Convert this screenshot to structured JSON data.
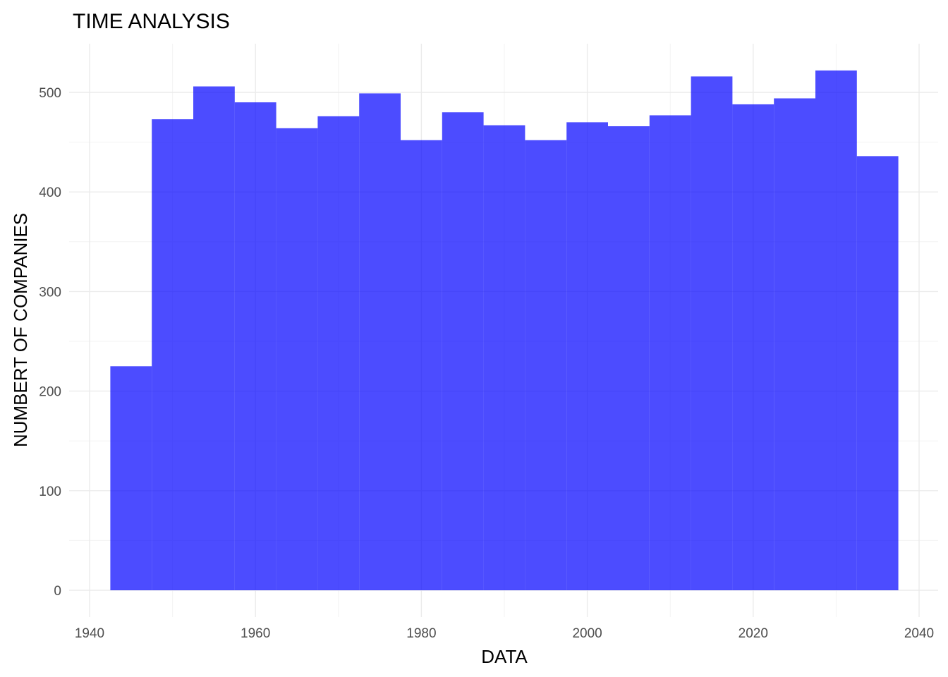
{
  "chart_data": {
    "type": "bar",
    "subtype": "histogram",
    "title": "TIME ANALYSIS",
    "xlabel": "DATA",
    "ylabel": "NUMBERT OF COMPANIES",
    "xlim": [
      1940,
      2040
    ],
    "ylim": [
      0,
      550
    ],
    "x_ticks": [
      1940,
      1960,
      1980,
      2000,
      2020,
      2040
    ],
    "y_ticks": [
      0,
      100,
      200,
      300,
      400,
      500
    ],
    "grid": true,
    "legend": "none",
    "bar_color": "#0000ff",
    "bar_opacity": 0.7,
    "bin_width": 5,
    "bins": [
      {
        "start": 1942.5,
        "end": 1947.5,
        "count": 225
      },
      {
        "start": 1947.5,
        "end": 1952.5,
        "count": 473
      },
      {
        "start": 1952.5,
        "end": 1957.5,
        "count": 506
      },
      {
        "start": 1957.5,
        "end": 1962.5,
        "count": 490
      },
      {
        "start": 1962.5,
        "end": 1967.5,
        "count": 464
      },
      {
        "start": 1967.5,
        "end": 1972.5,
        "count": 476
      },
      {
        "start": 1972.5,
        "end": 1977.5,
        "count": 499
      },
      {
        "start": 1977.5,
        "end": 1982.5,
        "count": 452
      },
      {
        "start": 1982.5,
        "end": 1987.5,
        "count": 480
      },
      {
        "start": 1987.5,
        "end": 1992.5,
        "count": 467
      },
      {
        "start": 1992.5,
        "end": 1997.5,
        "count": 452
      },
      {
        "start": 1997.5,
        "end": 2002.5,
        "count": 470
      },
      {
        "start": 2002.5,
        "end": 2007.5,
        "count": 466
      },
      {
        "start": 2007.5,
        "end": 2012.5,
        "count": 477
      },
      {
        "start": 2012.5,
        "end": 2017.5,
        "count": 516
      },
      {
        "start": 2017.5,
        "end": 2022.5,
        "count": 488
      },
      {
        "start": 2022.5,
        "end": 2027.5,
        "count": 494
      },
      {
        "start": 2027.5,
        "end": 2032.5,
        "count": 522
      },
      {
        "start": 2032.5,
        "end": 2037.5,
        "count": 436
      }
    ]
  }
}
